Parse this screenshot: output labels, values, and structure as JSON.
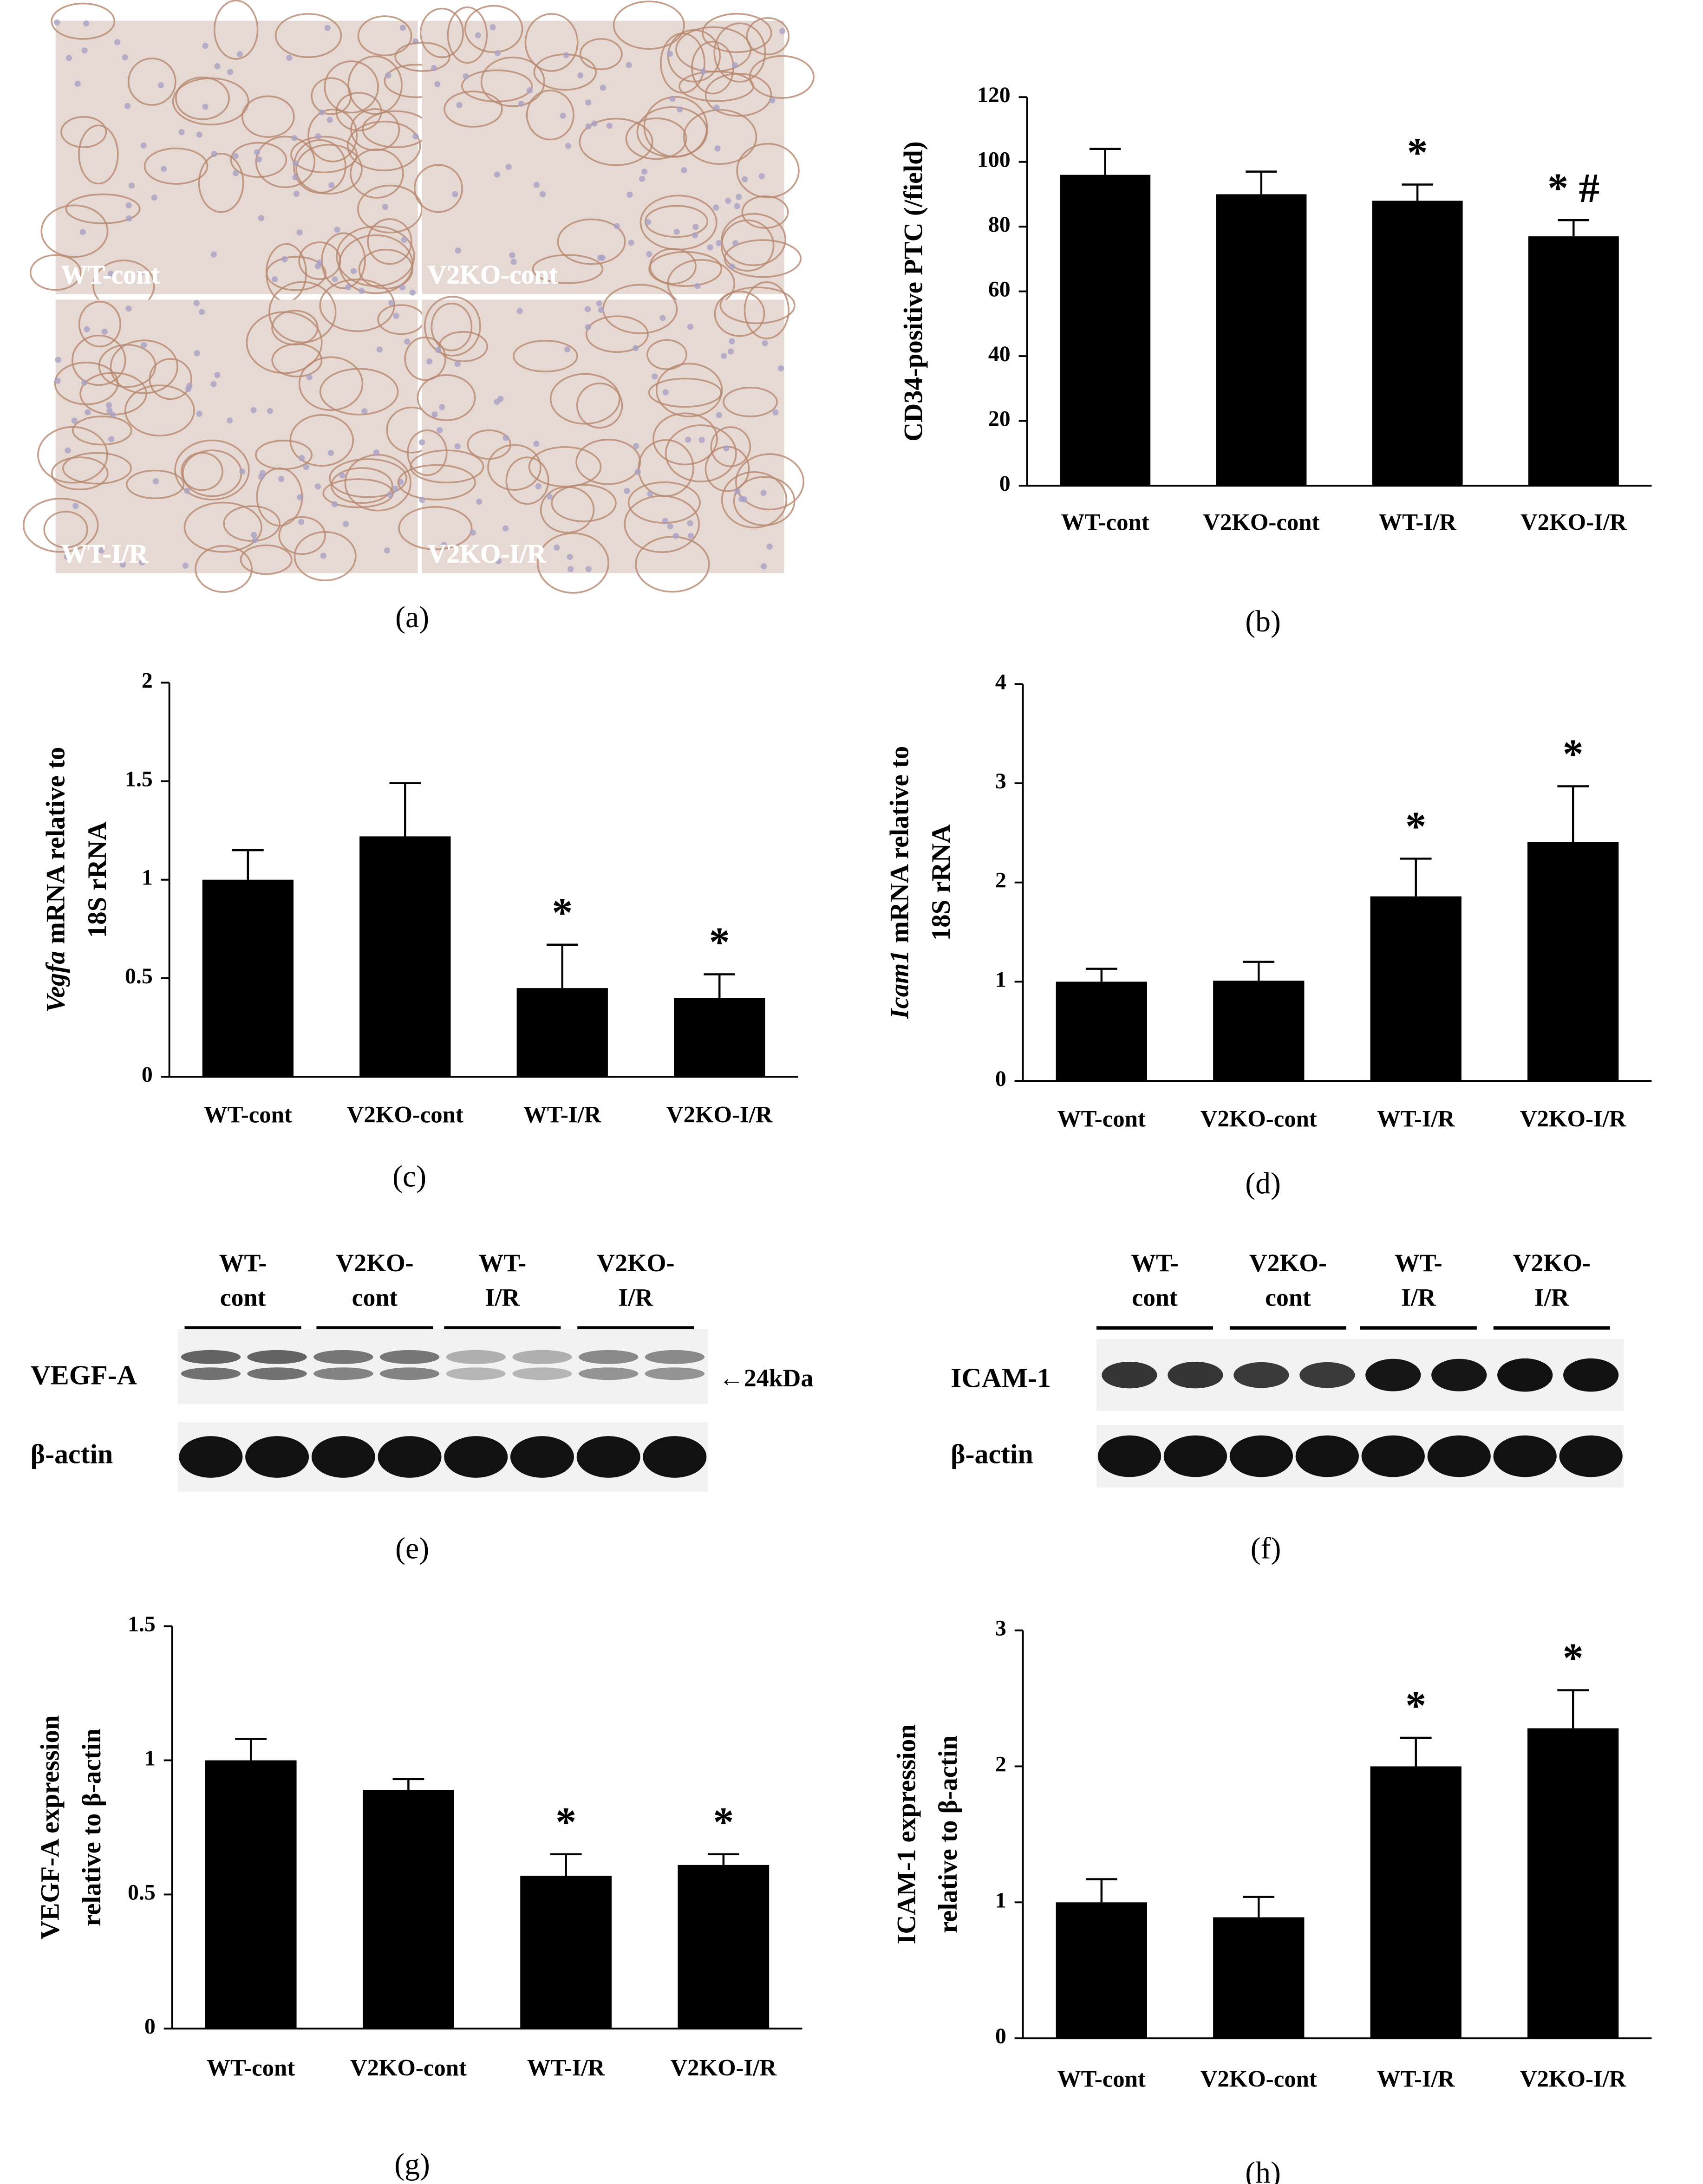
{
  "micrographs": {
    "labels": [
      "WT-cont",
      "V2KO-cont",
      "WT-I/R",
      "V2KO-I/R"
    ],
    "panel_label": "(a)"
  },
  "blots": [
    {
      "groups": [
        [
          "WT-",
          "cont"
        ],
        [
          "V2KO-",
          "cont"
        ],
        [
          "WT-",
          "I/R"
        ],
        [
          "V2KO-",
          "I/R"
        ]
      ],
      "rows": [
        "VEGF-A",
        "β-actin"
      ],
      "marker": "←24kDa",
      "panel_label": "(e)"
    },
    {
      "groups": [
        [
          "WT-",
          "cont"
        ],
        [
          "V2KO-",
          "cont"
        ],
        [
          "WT-",
          "I/R"
        ],
        [
          "V2KO-",
          "I/R"
        ]
      ],
      "rows": [
        "ICAM-1",
        "β-actin"
      ],
      "panel_label": "(f)"
    }
  ],
  "chart_data": [
    {
      "type": "bar",
      "panel_label": "(b)",
      "y_label": [
        [
          {
            "text": "CD34-positive PTC (/field)"
          }
        ]
      ],
      "categories": [
        "WT-cont",
        "V2KO-cont",
        "WT-I/R",
        "V2KO-I/R"
      ],
      "values": [
        96,
        90,
        88,
        77
      ],
      "errors": [
        8,
        7,
        5,
        5
      ],
      "color": "#000000",
      "ylim": [
        0,
        120
      ],
      "yticks": [
        0,
        20,
        40,
        60,
        80,
        100,
        120
      ],
      "annotations": [
        {
          "category": "WT-I/R",
          "text": "*"
        },
        {
          "category": "V2KO-I/R",
          "text": "* #"
        }
      ]
    },
    {
      "type": "bar",
      "panel_label": "(c)",
      "y_label": [
        [
          {
            "text": "Vegfa",
            "italic": true
          },
          {
            "text": "mRNA relative to"
          }
        ],
        [
          {
            "text": "18S rRNA"
          }
        ]
      ],
      "categories": [
        "WT-cont",
        "V2KO-cont",
        "WT-I/R",
        "V2KO-I/R"
      ],
      "values": [
        1.0,
        1.22,
        0.45,
        0.4
      ],
      "errors": [
        0.15,
        0.27,
        0.22,
        0.12
      ],
      "color": "#000000",
      "ylim": [
        0,
        2
      ],
      "yticks": [
        0,
        0.5,
        1,
        1.5,
        2
      ],
      "annotations": [
        {
          "category": "WT-I/R",
          "text": "*"
        },
        {
          "category": "V2KO-I/R",
          "text": "*"
        }
      ]
    },
    {
      "type": "bar",
      "panel_label": "(d)",
      "y_label": [
        [
          {
            "text": "Icam1",
            "italic": true
          },
          {
            "text": "mRNA relative to"
          }
        ],
        [
          {
            "text": "18S rRNA"
          }
        ]
      ],
      "categories": [
        "WT-cont",
        "V2KO-cont",
        "WT-I/R",
        "V2KO-I/R"
      ],
      "values": [
        1.0,
        1.01,
        1.86,
        2.41
      ],
      "errors": [
        0.13,
        0.19,
        0.38,
        0.56
      ],
      "color": "#000000",
      "ylim": [
        0,
        4
      ],
      "yticks": [
        0,
        1,
        2,
        3,
        4
      ],
      "annotations": [
        {
          "category": "WT-I/R",
          "text": "*"
        },
        {
          "category": "V2KO-I/R",
          "text": "*"
        }
      ]
    },
    {
      "type": "bar",
      "panel_label": "(g)",
      "y_label": [
        [
          {
            "text": "VEGF-A expression"
          }
        ],
        [
          {
            "text": "relative to β-actin"
          }
        ]
      ],
      "categories": [
        "WT-cont",
        "V2KO-cont",
        "WT-I/R",
        "V2KO-I/R"
      ],
      "values": [
        1.0,
        0.89,
        0.57,
        0.61
      ],
      "errors": [
        0.08,
        0.04,
        0.08,
        0.04
      ],
      "color": "#000000",
      "ylim": [
        0,
        1.5
      ],
      "yticks": [
        0,
        0.5,
        1,
        1.5
      ],
      "annotations": [
        {
          "category": "WT-I/R",
          "text": "*"
        },
        {
          "category": "V2KO-I/R",
          "text": "*"
        }
      ]
    },
    {
      "type": "bar",
      "panel_label": "(h)",
      "y_label": [
        [
          {
            "text": "ICAM-1 expression"
          }
        ],
        [
          {
            "text": "relative to β-actin"
          }
        ]
      ],
      "categories": [
        "WT-cont",
        "V2KO-cont",
        "WT-I/R",
        "V2KO-I/R"
      ],
      "values": [
        1.0,
        0.89,
        2.0,
        2.28
      ],
      "errors": [
        0.17,
        0.15,
        0.21,
        0.28
      ],
      "color": "#000000",
      "ylim": [
        0,
        3
      ],
      "yticks": [
        0,
        1,
        2,
        3
      ],
      "annotations": [
        {
          "category": "WT-I/R",
          "text": "*"
        },
        {
          "category": "V2KO-I/R",
          "text": "*"
        }
      ]
    }
  ]
}
